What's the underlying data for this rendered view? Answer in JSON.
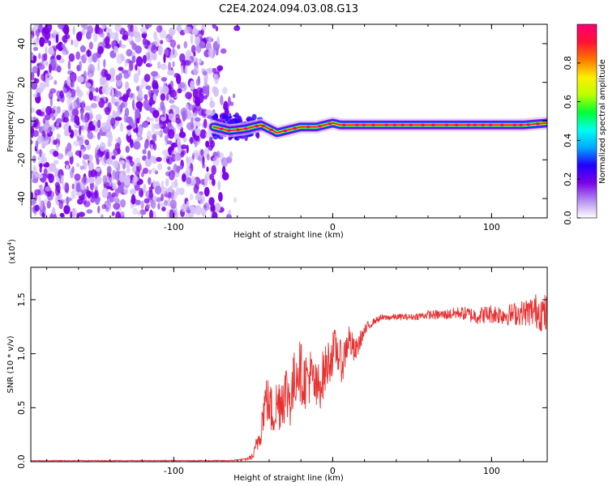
{
  "chart_data": [
    {
      "type": "heatmap",
      "title": "C2E4.2024.094.03.08.G13",
      "xlabel": "Height of straight line (km)",
      "ylabel": "Frequency (Hz)",
      "xlim": [
        -190,
        135
      ],
      "ylim": [
        -50,
        50
      ],
      "xticks": [
        -100,
        0,
        100
      ],
      "xtick_labels": [
        "-100",
        "0",
        "100"
      ],
      "yticks": [
        -40,
        -20,
        0,
        20,
        40
      ],
      "ytick_labels": [
        "-40",
        "-20",
        "0",
        "20",
        "40"
      ],
      "noise_region_x": [
        -190,
        -60
      ],
      "transition_region_x": [
        -75,
        -45
      ],
      "signal_curve": {
        "x": [
          -75,
          -65,
          -55,
          -50,
          -45,
          -40,
          -35,
          -30,
          -25,
          -20,
          -15,
          -10,
          -5,
          0,
          5,
          10,
          20,
          40,
          60,
          80,
          100,
          120,
          135
        ],
        "y": [
          -3,
          -5,
          -4,
          -3,
          -2,
          -4,
          -6,
          -5,
          -4,
          -3,
          -3,
          -3,
          -2,
          -1,
          -2,
          -2,
          -2,
          -2,
          -2,
          -2,
          -2,
          -2,
          -1
        ]
      },
      "colorbar": {
        "label": "Normalized spectral amplitude",
        "range": [
          0,
          1
        ],
        "ticks": [
          "0.0",
          "0.2",
          "0.4",
          "0.6",
          "0.8"
        ],
        "tick_values": [
          0.0,
          0.2,
          0.4,
          0.6,
          0.8
        ],
        "colormap": [
          "#ffffff",
          "#b38cf0",
          "#7a00e8",
          "#2200ff",
          "#00aaff",
          "#00ffee",
          "#00ff33",
          "#bbff00",
          "#ffee00",
          "#ff7700",
          "#ff1133",
          "#ff0077"
        ]
      },
      "grid": false
    },
    {
      "type": "line",
      "xlabel": "Height of straight line (km)",
      "ylabel": "SNR (10 * v/v)",
      "scale_label": "(x10",
      "scale_exponent": "4",
      "scale_suffix": ")",
      "xlim": [
        -190,
        135
      ],
      "ylim": [
        0,
        1.8
      ],
      "xticks": [
        -100,
        0,
        100
      ],
      "xtick_labels": [
        "-100",
        "0",
        "100"
      ],
      "yticks": [
        0.0,
        0.5,
        1.0,
        1.5
      ],
      "ytick_labels": [
        "0.0",
        "0.5",
        "1.0",
        "1.5"
      ],
      "series": [
        {
          "color": "#e83030",
          "x": [
            -190,
            -150,
            -100,
            -80,
            -65,
            -55,
            -50,
            -46,
            -42,
            -38,
            -34,
            -30,
            -26,
            -22,
            -18,
            -14,
            -10,
            -6,
            -2,
            2,
            6,
            10,
            14,
            18,
            22,
            26,
            30,
            40,
            50,
            60,
            70,
            80,
            90,
            100,
            110,
            120,
            130,
            135
          ],
          "y": [
            0.01,
            0.01,
            0.01,
            0.01,
            0.01,
            0.02,
            0.05,
            0.25,
            0.6,
            0.45,
            0.55,
            0.65,
            0.6,
            0.9,
            0.75,
            0.8,
            0.65,
            0.8,
            0.95,
            1.05,
            0.9,
            1.15,
            1.0,
            1.15,
            1.25,
            1.3,
            1.33,
            1.34,
            1.34,
            1.36,
            1.36,
            1.38,
            1.35,
            1.37,
            1.36,
            1.38,
            1.4,
            1.35
          ],
          "noise_amplitude": [
            0.004,
            0.004,
            0.004,
            0.004,
            0.004,
            0.01,
            0.03,
            0.15,
            0.22,
            0.25,
            0.28,
            0.3,
            0.3,
            0.3,
            0.28,
            0.26,
            0.25,
            0.24,
            0.22,
            0.2,
            0.18,
            0.16,
            0.12,
            0.08,
            0.05,
            0.03,
            0.03,
            0.03,
            0.03,
            0.04,
            0.05,
            0.06,
            0.08,
            0.09,
            0.1,
            0.12,
            0.18,
            0.2
          ]
        }
      ],
      "grid": false
    }
  ]
}
